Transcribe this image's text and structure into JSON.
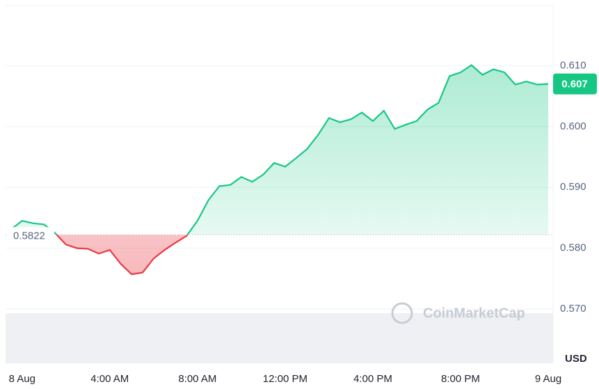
{
  "chart_data": {
    "type": "line",
    "categories": [
      null,
      "8 Aug",
      null,
      null,
      null,
      null,
      null,
      null,
      null,
      "4:00 AM",
      null,
      null,
      null,
      null,
      null,
      null,
      null,
      "8:00 AM",
      null,
      null,
      null,
      null,
      null,
      null,
      null,
      "12:00 PM",
      null,
      null,
      null,
      null,
      null,
      null,
      null,
      "4:00 PM",
      null,
      null,
      null,
      null,
      null,
      null,
      null,
      "8:00 PM",
      null,
      null,
      null,
      null,
      null,
      null,
      null,
      "9 Aug"
    ],
    "series": [
      {
        "values": [
          0.5831,
          0.5845,
          0.5841,
          0.5839,
          0.5825,
          0.5806,
          0.58,
          0.5799,
          0.5791,
          0.5797,
          0.5774,
          0.5757,
          0.576,
          0.5783,
          0.5797,
          0.5809,
          0.582,
          0.5845,
          0.5879,
          0.5902,
          0.5904,
          0.5917,
          0.5909,
          0.5921,
          0.594,
          0.5934,
          0.5948,
          0.5963,
          0.5986,
          0.6014,
          0.6007,
          0.6012,
          0.6023,
          0.6009,
          0.6026,
          0.5996,
          0.6003,
          0.6009,
          0.6028,
          0.6039,
          0.6083,
          0.6089,
          0.6101,
          0.6085,
          0.6094,
          0.6089,
          0.6069,
          0.6074,
          0.6069,
          0.607
        ]
      }
    ],
    "up_color": "#16c784",
    "down_color": "#ea3943",
    "baseline": 0.5822,
    "current_price": 0.607,
    "ylim": [
      0.57,
      0.62
    ],
    "yticks": [
      {
        "value": 0.57,
        "label": "0.570"
      },
      {
        "value": 0.58,
        "label": "0.580"
      },
      {
        "value": 0.59,
        "label": "0.590"
      },
      {
        "value": 0.6,
        "label": "0.600"
      },
      {
        "value": 0.61,
        "label": "0.610"
      }
    ],
    "currency": "USD",
    "watermark": "CoinMarketCap",
    "grid": true
  }
}
